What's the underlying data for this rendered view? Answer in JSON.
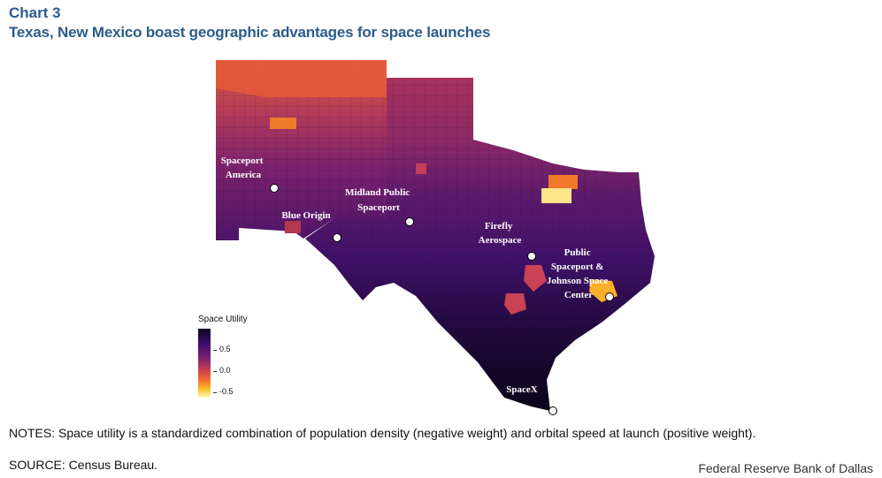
{
  "header": {
    "chart_number": "Chart 3",
    "title": "Texas, New Mexico boast geographic advantages for space launches"
  },
  "legend": {
    "title": "Space Utility",
    "ticks": [
      "0.5",
      "0.0",
      "-0.5"
    ]
  },
  "sites": [
    {
      "lines": [
        "Spaceport",
        "America"
      ]
    },
    {
      "lines": [
        "Blue Origin"
      ]
    },
    {
      "lines": [
        "Midland Public",
        "Spaceport"
      ]
    },
    {
      "lines": [
        "Firefly",
        "Aerospace"
      ]
    },
    {
      "lines": [
        "Public",
        "Spaceport &",
        "Johnson Space",
        "Center"
      ]
    },
    {
      "lines": [
        "SpaceX"
      ]
    }
  ],
  "footer": {
    "notes": "NOTES: Space utility is a standardized combination of population density (negative weight) and orbital speed at launch (positive weight).",
    "source": "SOURCE: Census Bureau.",
    "credit": "Federal Reserve Bank of Dallas"
  },
  "colors": {
    "title": "#2b5c8a",
    "high_utility": "#0b0620",
    "mid_utility": "#7a1f6e",
    "low_utility": "#fcfdbf"
  }
}
